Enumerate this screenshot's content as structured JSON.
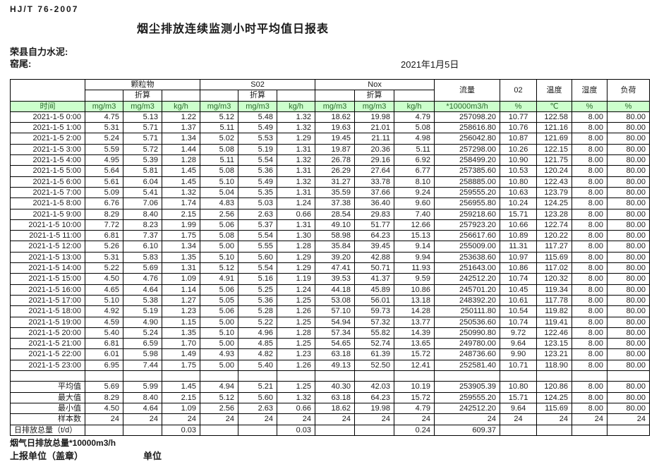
{
  "doc": {
    "standard": "HJ/T  76-2007",
    "title": "烟尘排放连续监测小时平均值日报表",
    "company": "荣县自力水泥:",
    "station": "窑尾:",
    "date": "2021年1月5日"
  },
  "table": {
    "time_header": "时间",
    "converted_label": "折算",
    "groups": [
      "颗粒物",
      "S02",
      "Nox"
    ],
    "singles": [
      "流量",
      "02",
      "温度",
      "湿度",
      "负荷"
    ],
    "units": [
      "mg/m3",
      "mg/m3",
      "kg/h",
      "mg/m3",
      "mg/m3",
      "kg/h",
      "mg/m3",
      "mg/m3",
      "kg/h",
      "*10000m3/h",
      "%",
      "℃",
      "%",
      "%"
    ],
    "rows": [
      {
        "time": "2021-1-5 0:00",
        "values": [
          "4.75",
          "5.13",
          "1.22",
          "5.12",
          "5.48",
          "1.32",
          "18.62",
          "19.98",
          "4.79",
          "257098.20",
          "10.77",
          "122.58",
          "8.00",
          "80.00"
        ]
      },
      {
        "time": "2021-1-5 1:00",
        "values": [
          "5.31",
          "5.71",
          "1.37",
          "5.11",
          "5.49",
          "1.32",
          "19.63",
          "21.01",
          "5.08",
          "258616.80",
          "10.76",
          "121.16",
          "8.00",
          "80.00"
        ]
      },
      {
        "time": "2021-1-5 2:00",
        "values": [
          "5.24",
          "5.71",
          "1.34",
          "5.02",
          "5.53",
          "1.29",
          "19.45",
          "21.11",
          "4.98",
          "256042.80",
          "10.87",
          "121.69",
          "8.00",
          "80.00"
        ]
      },
      {
        "time": "2021-1-5 3:00",
        "values": [
          "5.59",
          "5.72",
          "1.44",
          "5.08",
          "5.19",
          "1.31",
          "19.87",
          "20.36",
          "5.11",
          "257298.00",
          "10.26",
          "122.15",
          "8.00",
          "80.00"
        ]
      },
      {
        "time": "2021-1-5 4:00",
        "values": [
          "4.95",
          "5.39",
          "1.28",
          "5.11",
          "5.54",
          "1.32",
          "26.78",
          "29.16",
          "6.92",
          "258499.20",
          "10.90",
          "121.75",
          "8.00",
          "80.00"
        ]
      },
      {
        "time": "2021-1-5 5:00",
        "values": [
          "5.64",
          "5.81",
          "1.45",
          "5.08",
          "5.36",
          "1.31",
          "26.29",
          "27.64",
          "6.77",
          "257385.60",
          "10.53",
          "120.24",
          "8.00",
          "80.00"
        ]
      },
      {
        "time": "2021-1-5 6:00",
        "values": [
          "5.61",
          "6.04",
          "1.45",
          "5.10",
          "5.49",
          "1.32",
          "31.27",
          "33.78",
          "8.10",
          "258885.00",
          "10.80",
          "122.43",
          "8.00",
          "80.00"
        ]
      },
      {
        "time": "2021-1-5 7:00",
        "values": [
          "5.09",
          "5.41",
          "1.32",
          "5.04",
          "5.35",
          "1.31",
          "35.59",
          "37.66",
          "9.24",
          "259555.20",
          "10.63",
          "123.79",
          "8.00",
          "80.00"
        ]
      },
      {
        "time": "2021-1-5 8:00",
        "values": [
          "6.76",
          "7.06",
          "1.74",
          "4.83",
          "5.03",
          "1.24",
          "37.38",
          "36.40",
          "9.60",
          "256955.80",
          "10.24",
          "124.25",
          "8.00",
          "80.00"
        ]
      },
      {
        "time": "2021-1-5 9:00",
        "values": [
          "8.29",
          "8.40",
          "2.15",
          "2.56",
          "2.63",
          "0.66",
          "28.54",
          "29.83",
          "7.40",
          "259218.60",
          "15.71",
          "123.28",
          "8.00",
          "80.00"
        ]
      },
      {
        "time": "2021-1-5 10:00",
        "values": [
          "7.72",
          "8.23",
          "1.99",
          "5.06",
          "5.37",
          "1.31",
          "49.10",
          "51.77",
          "12.66",
          "257923.20",
          "10.66",
          "122.74",
          "8.00",
          "80.00"
        ]
      },
      {
        "time": "2021-1-5 11:00",
        "values": [
          "6.81",
          "7.37",
          "1.75",
          "5.08",
          "5.54",
          "1.30",
          "58.98",
          "64.23",
          "15.13",
          "256617.60",
          "10.89",
          "120.22",
          "8.00",
          "80.00"
        ]
      },
      {
        "time": "2021-1-5 12:00",
        "values": [
          "5.26",
          "6.10",
          "1.34",
          "5.00",
          "5.55",
          "1.28",
          "35.84",
          "39.45",
          "9.14",
          "255009.00",
          "11.31",
          "117.27",
          "8.00",
          "80.00"
        ]
      },
      {
        "time": "2021-1-5 13:00",
        "values": [
          "5.31",
          "5.83",
          "1.35",
          "5.10",
          "5.60",
          "1.29",
          "39.20",
          "42.88",
          "9.94",
          "253638.60",
          "10.97",
          "115.69",
          "8.00",
          "80.00"
        ]
      },
      {
        "time": "2021-1-5 14:00",
        "values": [
          "5.22",
          "5.69",
          "1.31",
          "5.12",
          "5.54",
          "1.29",
          "47.41",
          "50.71",
          "11.93",
          "251643.00",
          "10.86",
          "117.02",
          "8.00",
          "80.00"
        ]
      },
      {
        "time": "2021-1-5 15:00",
        "values": [
          "4.50",
          "4.76",
          "1.09",
          "4.91",
          "5.16",
          "1.19",
          "39.53",
          "41.37",
          "9.59",
          "242512.20",
          "10.74",
          "120.32",
          "8.00",
          "80.00"
        ]
      },
      {
        "time": "2021-1-5 16:00",
        "values": [
          "4.65",
          "4.64",
          "1.14",
          "5.06",
          "5.25",
          "1.24",
          "44.18",
          "45.89",
          "10.86",
          "245701.20",
          "10.45",
          "119.34",
          "8.00",
          "80.00"
        ]
      },
      {
        "time": "2021-1-5 17:00",
        "values": [
          "5.10",
          "5.38",
          "1.27",
          "5.05",
          "5.36",
          "1.25",
          "53.08",
          "56.01",
          "13.18",
          "248392.20",
          "10.61",
          "117.78",
          "8.00",
          "80.00"
        ]
      },
      {
        "time": "2021-1-5 18:00",
        "values": [
          "4.92",
          "5.19",
          "1.23",
          "5.06",
          "5.28",
          "1.26",
          "57.10",
          "59.73",
          "14.28",
          "250111.80",
          "10.54",
          "119.82",
          "8.00",
          "80.00"
        ]
      },
      {
        "time": "2021-1-5 19:00",
        "values": [
          "4.59",
          "4.90",
          "1.15",
          "5.00",
          "5.22",
          "1.25",
          "54.94",
          "57.32",
          "13.77",
          "250536.60",
          "10.74",
          "119.41",
          "8.00",
          "80.00"
        ]
      },
      {
        "time": "2021-1-5 20:00",
        "values": [
          "5.40",
          "5.24",
          "1.35",
          "5.10",
          "4.96",
          "1.28",
          "57.34",
          "55.82",
          "14.39",
          "250990.80",
          "9.72",
          "122.46",
          "8.00",
          "80.00"
        ]
      },
      {
        "time": "2021-1-5 21:00",
        "values": [
          "6.81",
          "6.59",
          "1.70",
          "5.00",
          "4.85",
          "1.25",
          "54.65",
          "52.74",
          "13.65",
          "249780.00",
          "9.64",
          "123.15",
          "8.00",
          "80.00"
        ]
      },
      {
        "time": "2021-1-5 22:00",
        "values": [
          "6.01",
          "5.98",
          "1.49",
          "4.93",
          "4.82",
          "1.23",
          "63.18",
          "61.39",
          "15.72",
          "248736.60",
          "9.90",
          "123.21",
          "8.00",
          "80.00"
        ]
      },
      {
        "time": "2021-1-5 23:00",
        "values": [
          "6.95",
          "7.44",
          "1.75",
          "5.00",
          "5.40",
          "1.26",
          "49.13",
          "52.50",
          "12.41",
          "252581.40",
          "10.71",
          "118.90",
          "8.00",
          "80.00"
        ]
      }
    ],
    "summary_rows": [
      {
        "label": "平均值",
        "values": [
          "5.69",
          "5.99",
          "1.45",
          "4.94",
          "5.21",
          "1.25",
          "40.30",
          "42.03",
          "10.19",
          "253905.39",
          "10.80",
          "120.86",
          "8.00",
          "80.00"
        ]
      },
      {
        "label": "最大值",
        "values": [
          "8.29",
          "8.40",
          "2.15",
          "5.12",
          "5.60",
          "1.32",
          "63.18",
          "64.23",
          "15.72",
          "259555.20",
          "15.71",
          "124.25",
          "8.00",
          "80.00"
        ]
      },
      {
        "label": "最小值",
        "values": [
          "4.50",
          "4.64",
          "1.09",
          "2.56",
          "2.63",
          "0.66",
          "18.62",
          "19.98",
          "4.79",
          "242512.20",
          "9.64",
          "115.69",
          "8.00",
          "80.00"
        ]
      },
      {
        "label": "样本数",
        "values": [
          "24",
          "24",
          "24",
          "24",
          "24",
          "24",
          "24",
          "24",
          "24",
          "24",
          "24",
          "24",
          "24",
          "24"
        ]
      },
      {
        "label": "日排放总量（t/d）",
        "values": [
          "",
          "",
          "0.03",
          "",
          "",
          "0.03",
          "",
          "",
          "0.24",
          "609.37",
          "",
          "",
          "",
          ""
        ]
      }
    ]
  },
  "footer": {
    "flow_total_note": "烟气日排放总量*10000m3/h",
    "report_unit_label": "上报单位（盖章）",
    "unit_label": "单位"
  },
  "colors": {
    "header_row_bg": "#ccffcc",
    "header_row_text": "#2d6b2d",
    "table_border": "#000000",
    "body_text": "#1a1a1a"
  }
}
